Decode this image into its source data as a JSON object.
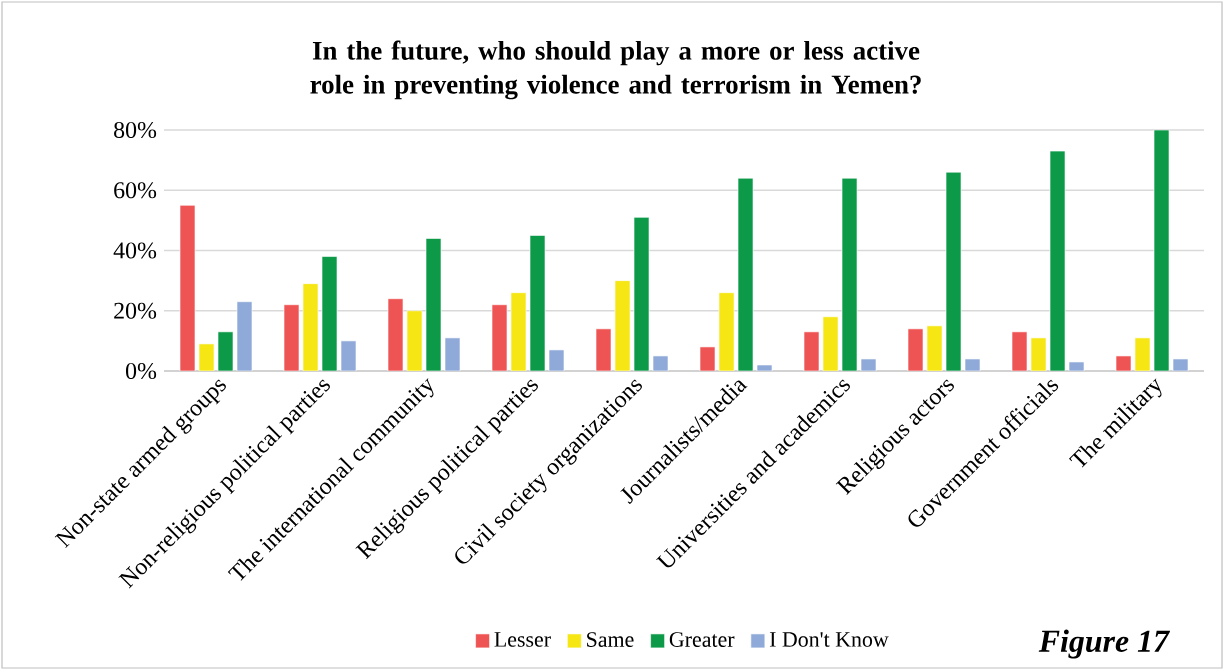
{
  "chart_data": {
    "type": "bar",
    "title": "In the future, who should play a more or less active role in preventing violence and terrorism in Yemen?",
    "categories": [
      "Non-state armed groups",
      "Non-religious political parties",
      "The international community",
      "Religious political parties",
      "Civil society organizations",
      "Journalists/media",
      "Universities and academics",
      "Religious actors",
      "Government officials",
      "The military"
    ],
    "series": [
      {
        "name": "Lesser",
        "color": "#ef5454",
        "values": [
          55,
          22,
          24,
          22,
          14,
          8,
          13,
          14,
          13,
          5
        ]
      },
      {
        "name": "Same",
        "color": "#f5e614",
        "values": [
          9,
          29,
          20,
          26,
          30,
          26,
          18,
          15,
          11,
          11
        ]
      },
      {
        "name": "Greater",
        "color": "#0c9a48",
        "values": [
          13,
          38,
          44,
          45,
          51,
          64,
          64,
          66,
          73,
          80
        ]
      },
      {
        "name": "I Don't Know",
        "color": "#8faad8",
        "values": [
          23,
          10,
          11,
          7,
          5,
          2,
          4,
          4,
          3,
          4
        ]
      }
    ],
    "ylim": [
      0,
      80
    ],
    "yticks": [
      {
        "value": 0,
        "label": "0%"
      },
      {
        "value": 20,
        "label": "20%"
      },
      {
        "value": 40,
        "label": "40%"
      },
      {
        "value": 60,
        "label": "60%"
      },
      {
        "value": 80,
        "label": "80%"
      }
    ],
    "grid": "y",
    "legend": "bottom",
    "annotations": [
      "Figure 17"
    ]
  }
}
